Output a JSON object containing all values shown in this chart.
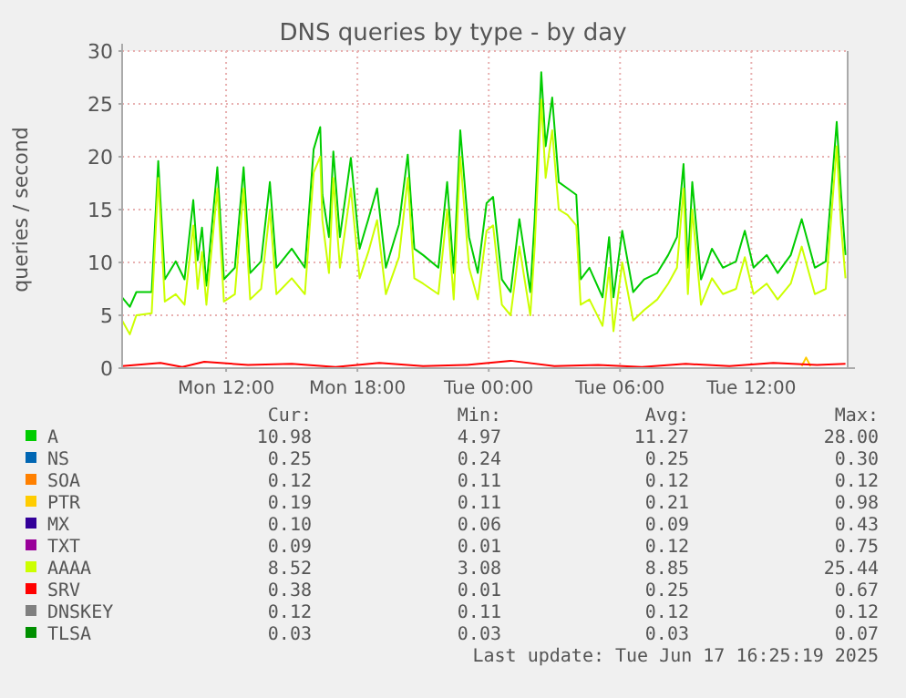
{
  "chart_data": {
    "type": "line",
    "title": "DNS queries by type - by day",
    "ylabel": "queries / second",
    "xlim": [
      "2025-06-16T07:15",
      "2025-06-17T16:24"
    ],
    "xticks": [
      {
        "value": "2025-06-16T12:00",
        "label": "Mon 12:00"
      },
      {
        "value": "2025-06-16T18:00",
        "label": "Mon 18:00"
      },
      {
        "value": "2025-06-17T00:00",
        "label": "Tue 00:00"
      },
      {
        "value": "2025-06-17T06:00",
        "label": "Tue 06:00"
      },
      {
        "value": "2025-06-17T12:00",
        "label": "Tue 12:00"
      }
    ],
    "ylim": [
      0,
      30
    ],
    "yticks": [
      0,
      5,
      10,
      15,
      20,
      25,
      30
    ],
    "grid": true,
    "legend": "bottom",
    "series": [
      {
        "name": "A",
        "color": "#00cc00",
        "x": [
          "2025-06-16T07:15",
          "2025-06-16T07:36",
          "2025-06-16T07:54",
          "2025-06-16T08:36",
          "2025-06-16T08:54",
          "2025-06-16T09:12",
          "2025-06-16T09:42",
          "2025-06-16T10:06",
          "2025-06-16T10:30",
          "2025-06-16T10:42",
          "2025-06-16T10:54",
          "2025-06-16T11:06",
          "2025-06-16T11:36",
          "2025-06-16T11:54",
          "2025-06-16T12:24",
          "2025-06-16T12:48",
          "2025-06-16T13:06",
          "2025-06-16T13:36",
          "2025-06-16T14:00",
          "2025-06-16T14:18",
          "2025-06-16T15:00",
          "2025-06-16T15:36",
          "2025-06-16T16:00",
          "2025-06-16T16:18",
          "2025-06-16T16:24",
          "2025-06-16T16:42",
          "2025-06-16T16:54",
          "2025-06-16T17:12",
          "2025-06-16T17:42",
          "2025-06-16T18:06",
          "2025-06-16T18:30",
          "2025-06-16T18:54",
          "2025-06-16T19:18",
          "2025-06-16T19:54",
          "2025-06-16T20:18",
          "2025-06-16T20:36",
          "2025-06-16T21:00",
          "2025-06-16T21:42",
          "2025-06-16T22:06",
          "2025-06-16T22:24",
          "2025-06-16T22:42",
          "2025-06-16T23:06",
          "2025-06-16T23:30",
          "2025-06-16T23:54",
          "2025-06-17T00:12",
          "2025-06-17T00:36",
          "2025-06-17T01:00",
          "2025-06-17T01:24",
          "2025-06-17T01:54",
          "2025-06-17T02:06",
          "2025-06-17T02:24",
          "2025-06-17T02:36",
          "2025-06-17T02:54",
          "2025-06-17T03:12",
          "2025-06-17T03:36",
          "2025-06-17T04:00",
          "2025-06-17T04:12",
          "2025-06-17T04:36",
          "2025-06-17T05:12",
          "2025-06-17T05:30",
          "2025-06-17T05:42",
          "2025-06-17T06:06",
          "2025-06-17T06:36",
          "2025-06-17T07:06",
          "2025-06-17T07:42",
          "2025-06-17T08:12",
          "2025-06-17T08:36",
          "2025-06-17T08:54",
          "2025-06-17T09:06",
          "2025-06-17T09:18",
          "2025-06-17T09:42",
          "2025-06-17T10:12",
          "2025-06-17T10:42",
          "2025-06-17T11:18",
          "2025-06-17T11:42",
          "2025-06-17T12:06",
          "2025-06-17T12:42",
          "2025-06-17T13:12",
          "2025-06-17T13:48",
          "2025-06-17T14:18",
          "2025-06-17T14:54",
          "2025-06-17T15:24",
          "2025-06-17T15:54",
          "2025-06-17T16:06",
          "2025-06-17T16:18"
        ],
        "values": [
          6.7,
          5.8,
          7.2,
          7.2,
          19.6,
          8.4,
          10.1,
          8.4,
          15.9,
          10.2,
          13.3,
          7.8,
          19.0,
          8.4,
          9.5,
          19.0,
          9.0,
          10.1,
          17.6,
          9.5,
          11.3,
          9.5,
          20.7,
          22.8,
          16.4,
          12.4,
          20.5,
          12.4,
          19.9,
          11.3,
          14.1,
          17.0,
          9.5,
          13.6,
          20.2,
          11.3,
          10.7,
          9.5,
          17.6,
          9.0,
          22.5,
          12.4,
          9.0,
          15.6,
          16.2,
          8.4,
          7.2,
          14.1,
          7.2,
          14.1,
          28.0,
          21.0,
          25.6,
          17.6,
          17.0,
          16.4,
          8.4,
          9.5,
          6.7,
          12.4,
          6.7,
          13.0,
          7.2,
          8.4,
          9.0,
          10.7,
          12.4,
          19.3,
          9.5,
          17.6,
          8.4,
          11.3,
          9.5,
          10.1,
          13.0,
          9.5,
          10.7,
          9.0,
          10.7,
          14.1,
          9.5,
          10.1,
          23.3,
          16.4,
          10.7
        ]
      },
      {
        "name": "NS",
        "color": "#0066b3"
      },
      {
        "name": "SOA",
        "color": "#ff8000"
      },
      {
        "name": "PTR",
        "color": "#ffcc00",
        "x": [
          "2025-06-17T14:18",
          "2025-06-17T14:30",
          "2025-06-17T14:42"
        ],
        "values": [
          0.2,
          1.0,
          0.2
        ]
      },
      {
        "name": "MX",
        "color": "#330099"
      },
      {
        "name": "TXT",
        "color": "#990099"
      },
      {
        "name": "AAAA",
        "color": "#ccff00",
        "x": [
          "2025-06-16T07:15",
          "2025-06-16T07:36",
          "2025-06-16T07:54",
          "2025-06-16T08:36",
          "2025-06-16T08:54",
          "2025-06-16T09:12",
          "2025-06-16T09:42",
          "2025-06-16T10:06",
          "2025-06-16T10:30",
          "2025-06-16T10:42",
          "2025-06-16T10:54",
          "2025-06-16T11:06",
          "2025-06-16T11:36",
          "2025-06-16T11:54",
          "2025-06-16T12:24",
          "2025-06-16T12:48",
          "2025-06-16T13:06",
          "2025-06-16T13:36",
          "2025-06-16T14:00",
          "2025-06-16T14:18",
          "2025-06-16T15:00",
          "2025-06-16T15:36",
          "2025-06-16T16:00",
          "2025-06-16T16:18",
          "2025-06-16T16:24",
          "2025-06-16T16:42",
          "2025-06-16T16:54",
          "2025-06-16T17:12",
          "2025-06-16T17:42",
          "2025-06-16T18:06",
          "2025-06-16T18:30",
          "2025-06-16T18:54",
          "2025-06-16T19:18",
          "2025-06-16T19:54",
          "2025-06-16T20:18",
          "2025-06-16T20:36",
          "2025-06-16T21:00",
          "2025-06-16T21:42",
          "2025-06-16T22:06",
          "2025-06-16T22:24",
          "2025-06-16T22:42",
          "2025-06-16T23:06",
          "2025-06-16T23:30",
          "2025-06-16T23:54",
          "2025-06-17T00:12",
          "2025-06-17T00:36",
          "2025-06-17T01:00",
          "2025-06-17T01:24",
          "2025-06-17T01:54",
          "2025-06-17T02:06",
          "2025-06-17T02:24",
          "2025-06-17T02:36",
          "2025-06-17T02:54",
          "2025-06-17T03:12",
          "2025-06-17T03:36",
          "2025-06-17T04:00",
          "2025-06-17T04:12",
          "2025-06-17T04:36",
          "2025-06-17T05:12",
          "2025-06-17T05:30",
          "2025-06-17T05:42",
          "2025-06-17T06:06",
          "2025-06-17T06:36",
          "2025-06-17T07:06",
          "2025-06-17T07:42",
          "2025-06-17T08:12",
          "2025-06-17T08:36",
          "2025-06-17T08:54",
          "2025-06-17T09:06",
          "2025-06-17T09:18",
          "2025-06-17T09:42",
          "2025-06-17T10:12",
          "2025-06-17T10:42",
          "2025-06-17T11:18",
          "2025-06-17T11:42",
          "2025-06-17T12:06",
          "2025-06-17T12:42",
          "2025-06-17T13:12",
          "2025-06-17T13:48",
          "2025-06-17T14:18",
          "2025-06-17T14:54",
          "2025-06-17T15:24",
          "2025-06-17T15:54",
          "2025-06-17T16:06",
          "2025-06-17T16:18"
        ],
        "values": [
          4.5,
          3.2,
          5.0,
          5.2,
          18.0,
          6.3,
          7.0,
          6.0,
          13.5,
          7.5,
          11.0,
          6.0,
          17.0,
          6.3,
          7.0,
          17.0,
          6.5,
          7.5,
          15.0,
          7.0,
          8.5,
          7.0,
          18.5,
          20.0,
          14.0,
          9.0,
          18.0,
          9.5,
          17.0,
          8.5,
          11.0,
          14.0,
          7.0,
          10.5,
          18.0,
          8.5,
          8.0,
          7.0,
          15.0,
          6.5,
          20.0,
          9.5,
          6.5,
          13.0,
          13.5,
          6.0,
          5.0,
          11.5,
          5.0,
          11.5,
          25.4,
          18.0,
          22.5,
          15.0,
          14.5,
          13.5,
          6.0,
          6.5,
          4.0,
          9.5,
          3.5,
          10.0,
          4.5,
          5.5,
          6.5,
          8.0,
          9.5,
          17.0,
          7.0,
          15.0,
          6.0,
          8.5,
          7.0,
          7.5,
          10.5,
          7.0,
          8.0,
          6.5,
          8.0,
          11.5,
          7.0,
          7.5,
          21.0,
          13.5,
          8.5
        ]
      },
      {
        "name": "SRV",
        "color": "#ff0000",
        "x": [
          "2025-06-16T07:15",
          "2025-06-16T09:00",
          "2025-06-16T10:00",
          "2025-06-16T11:00",
          "2025-06-16T13:00",
          "2025-06-16T15:00",
          "2025-06-16T17:00",
          "2025-06-16T19:00",
          "2025-06-16T21:00",
          "2025-06-16T23:00",
          "2025-06-17T01:00",
          "2025-06-17T03:00",
          "2025-06-17T05:00",
          "2025-06-17T07:00",
          "2025-06-17T09:00",
          "2025-06-17T11:00",
          "2025-06-17T13:00",
          "2025-06-17T15:00",
          "2025-06-17T16:18"
        ],
        "values": [
          0.2,
          0.5,
          0.1,
          0.6,
          0.3,
          0.4,
          0.1,
          0.5,
          0.2,
          0.3,
          0.7,
          0.2,
          0.3,
          0.1,
          0.4,
          0.2,
          0.5,
          0.3,
          0.4
        ]
      },
      {
        "name": "DNSKEY",
        "color": "#808080"
      },
      {
        "name": "TLSA",
        "color": "#008f00"
      }
    ],
    "annotations": [
      "Cur:",
      "Min:",
      "Avg:",
      "Max:",
      "10.98",
      "4.97",
      "11.27",
      "28.00",
      "0.25",
      "0.24",
      "0.25",
      "0.30",
      "0.12",
      "0.11",
      "0.12",
      "0.12",
      "0.19",
      "0.11",
      "0.21",
      "0.98",
      "0.10",
      "0.06",
      "0.09",
      "0.43",
      "0.09",
      "0.01",
      "0.12",
      "0.75",
      "8.52",
      "3.08",
      "8.85",
      "25.44",
      "0.38",
      "0.01",
      "0.25",
      "0.67",
      "0.12",
      "0.11",
      "0.12",
      "0.12",
      "0.03",
      "0.03",
      "0.03",
      "0.07",
      "Last update: Tue Jun 17 16:25:19 2025"
    ]
  }
}
